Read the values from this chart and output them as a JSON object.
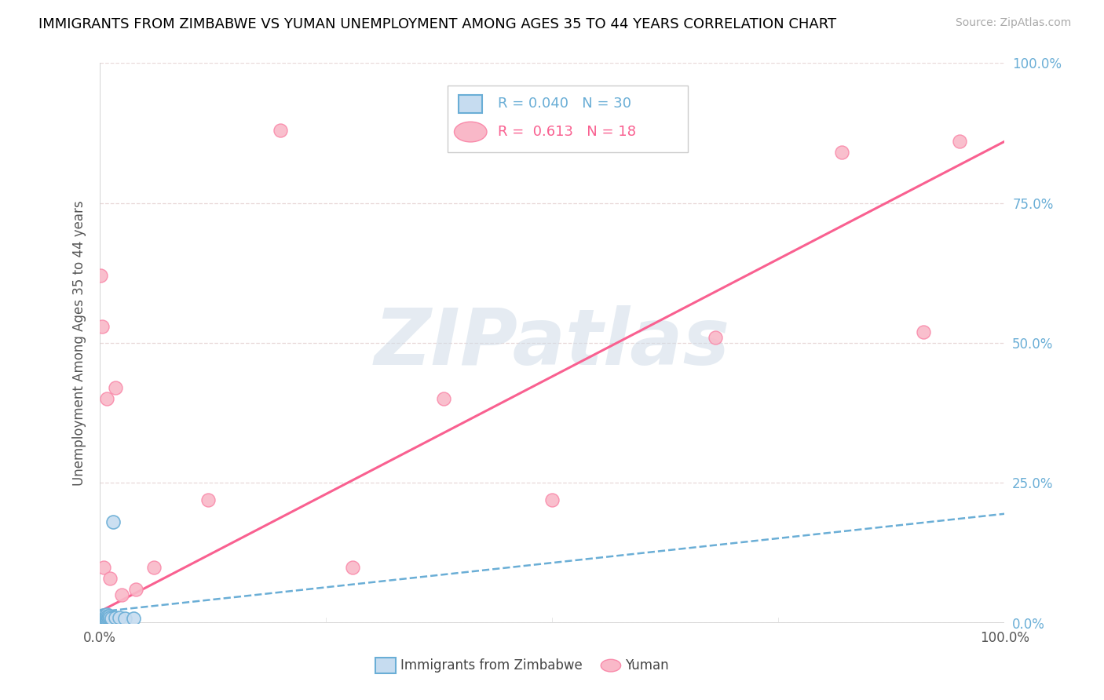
{
  "title": "IMMIGRANTS FROM ZIMBABWE VS YUMAN UNEMPLOYMENT AMONG AGES 35 TO 44 YEARS CORRELATION CHART",
  "source": "Source: ZipAtlas.com",
  "ylabel": "Unemployment Among Ages 35 to 44 years",
  "ytick_labels": [
    "0.0%",
    "25.0%",
    "50.0%",
    "75.0%",
    "100.0%"
  ],
  "ytick_values": [
    0.0,
    0.25,
    0.5,
    0.75,
    1.0
  ],
  "xtick_labels": [
    "0.0%",
    "100.0%"
  ],
  "xtick_values": [
    0.0,
    1.0
  ],
  "legend1_label": "Immigrants from Zimbabwe",
  "legend2_label": "Yuman",
  "r1": "0.040",
  "n1": "30",
  "r2": "0.613",
  "n2": "18",
  "blue_face": "#c6dcf0",
  "blue_edge": "#6aaed6",
  "pink_face": "#f9b8c8",
  "pink_edge": "#f98aaa",
  "blue_line_color": "#6aaed6",
  "pink_line_color": "#f96090",
  "grid_color": "#e8d8d8",
  "watermark": "ZIPatlas",
  "watermark_color": "#d8d8d8",
  "blue_dots_x": [
    0.001,
    0.002,
    0.002,
    0.003,
    0.003,
    0.003,
    0.004,
    0.004,
    0.004,
    0.005,
    0.005,
    0.005,
    0.005,
    0.006,
    0.006,
    0.006,
    0.007,
    0.007,
    0.008,
    0.008,
    0.009,
    0.01,
    0.011,
    0.012,
    0.013,
    0.015,
    0.018,
    0.022,
    0.028,
    0.038
  ],
  "blue_dots_y": [
    0.005,
    0.008,
    0.01,
    0.005,
    0.008,
    0.012,
    0.006,
    0.01,
    0.014,
    0.005,
    0.008,
    0.01,
    0.013,
    0.007,
    0.01,
    0.014,
    0.008,
    0.012,
    0.01,
    0.015,
    0.012,
    0.01,
    0.012,
    0.01,
    0.008,
    0.18,
    0.01,
    0.01,
    0.008,
    0.008
  ],
  "pink_dots_x": [
    0.001,
    0.003,
    0.005,
    0.008,
    0.012,
    0.018,
    0.025,
    0.04,
    0.06,
    0.12,
    0.2,
    0.28,
    0.38,
    0.5,
    0.68,
    0.82,
    0.91,
    0.95
  ],
  "pink_dots_y": [
    0.62,
    0.53,
    0.1,
    0.4,
    0.08,
    0.42,
    0.05,
    0.06,
    0.1,
    0.22,
    0.88,
    0.1,
    0.4,
    0.22,
    0.51,
    0.84,
    0.52,
    0.86
  ],
  "blue_trend_x0": 0.0,
  "blue_trend_x1": 1.0,
  "blue_trend_y0": 0.02,
  "blue_trend_y1": 0.195,
  "pink_trend_x0": 0.0,
  "pink_trend_x1": 1.0,
  "pink_trend_y0": 0.02,
  "pink_trend_y1": 0.86
}
